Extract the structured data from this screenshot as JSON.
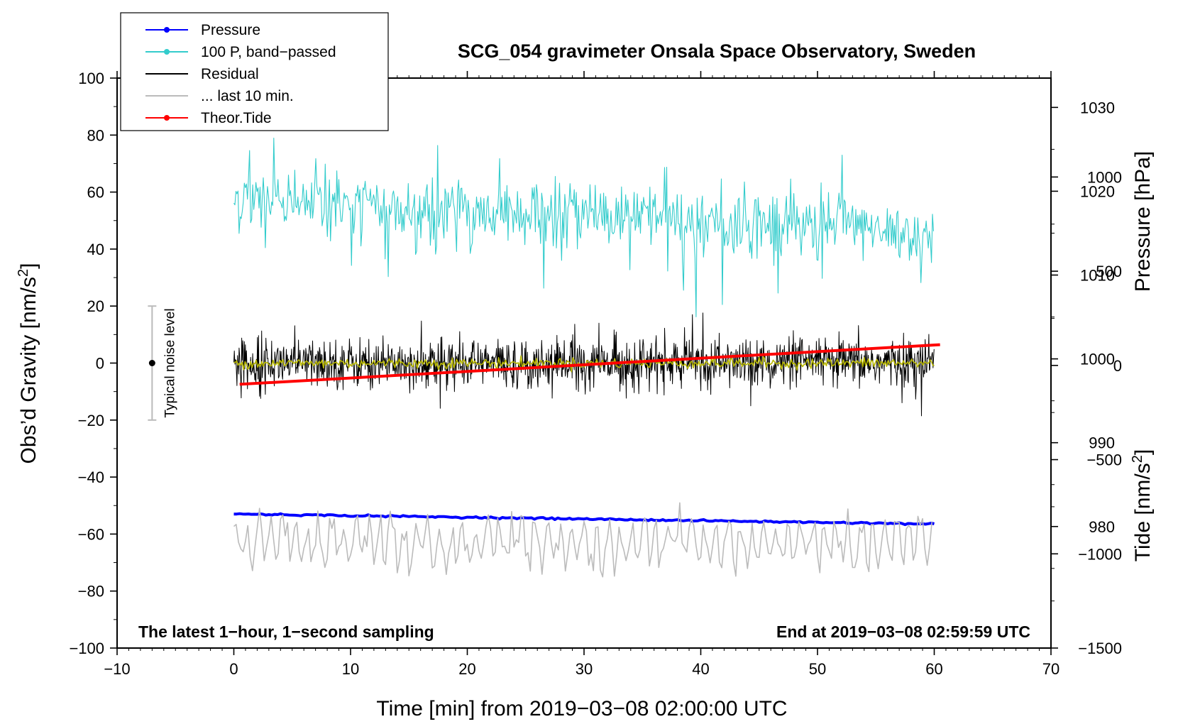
{
  "chart_data": {
    "type": "line",
    "title": "SCG_054 gravimeter Onsala Space Observatory, Sweden",
    "xlabel": "Time [min] from 2019−03−08 02:00:00 UTC",
    "ylabel_left_main": "Obs’d Gravity [nm/s",
    "ylabel_left_sup": "2",
    "ylabel_left_end": "]",
    "ylabel_right_pressure": "Pressure [hPa]",
    "ylabel_right_tide_main": "Tide [nm/s",
    "ylabel_right_tide_sup": "2",
    "ylabel_right_tide_end": "]",
    "xlim": [
      -10,
      70
    ],
    "ylim": [
      -100,
      100
    ],
    "pressure_ylim": [
      965.5,
      1033.5
    ],
    "tide_ylim": [
      -1500,
      1525
    ],
    "x_ticks": [
      -10,
      0,
      10,
      20,
      30,
      40,
      50,
      60,
      70
    ],
    "x_tick_labels": [
      "−10",
      "0",
      "10",
      "20",
      "30",
      "40",
      "50",
      "60",
      "70"
    ],
    "y_ticks": [
      -100,
      -80,
      -60,
      -40,
      -20,
      0,
      20,
      40,
      60,
      80,
      100
    ],
    "y_tick_labels": [
      "−100",
      "−80",
      "−60",
      "−40",
      "−20",
      "0",
      "20",
      "40",
      "60",
      "80",
      "100"
    ],
    "pressure_ticks": [
      980,
      990,
      1000,
      1010,
      1020,
      1030
    ],
    "pressure_tick_labels": [
      "980",
      "990",
      "1000",
      "1010",
      "1020",
      "1030"
    ],
    "tide_ticks": [
      -1500,
      -1000,
      -500,
      0,
      500,
      1000
    ],
    "tide_tick_labels": [
      "−1500",
      "−1000",
      "−500",
      "0",
      "500",
      "1000"
    ],
    "note_left": "The latest 1−hour, 1−second sampling",
    "note_right": "End at 2019−03−08 02:59:59 UTC",
    "noise_label": "Typical noise level",
    "noise_range": [
      -20,
      20
    ],
    "noise_x": -7,
    "legend": [
      {
        "label": "Pressure",
        "color": "#0000ff",
        "marker": true
      },
      {
        "label": "100 P, band−passed",
        "color": "#33cccc",
        "marker": true
      },
      {
        "label": "Residual",
        "color": "#000000",
        "marker": false
      },
      {
        "label": "... last 10 min.",
        "color": "#bbbbbb",
        "marker": false
      },
      {
        "label": "Theor.Tide",
        "color": "#ff0000",
        "marker": true
      }
    ],
    "series": [
      {
        "name": "Pressure",
        "axis": "pressure",
        "color": "#0000ff",
        "x": [
          0,
          10,
          20,
          30,
          40,
          50,
          60
        ],
        "values": [
          981.5,
          981.3,
          981.1,
          980.9,
          980.7,
          980.5,
          980.3
        ]
      },
      {
        "name": "100 P, band−passed",
        "axis": "left",
        "color": "#33cccc",
        "x": [
          0,
          10,
          20,
          30,
          40,
          50,
          60
        ],
        "values": [
          58,
          55,
          53,
          51,
          50,
          48,
          45
        ]
      },
      {
        "name": "Residual",
        "axis": "left",
        "color": "#000000",
        "x": [
          0,
          10,
          20,
          30,
          40,
          50,
          60
        ],
        "values": [
          0,
          0,
          0,
          0,
          0,
          0,
          0
        ]
      },
      {
        "name": "... last 10 min.",
        "axis": "left",
        "color": "#bbbbbb",
        "x": [
          0,
          10,
          20,
          30,
          40,
          50,
          60
        ],
        "values": [
          -63,
          -63,
          -63,
          -63,
          -63,
          -63,
          -63
        ]
      },
      {
        "name": "Theor.Tide",
        "axis": "tide",
        "color": "#ff0000",
        "x": [
          0.5,
          60.5
        ],
        "values": [
          -100,
          110
        ]
      }
    ],
    "residual_smoothed_color": "#b8b800"
  }
}
